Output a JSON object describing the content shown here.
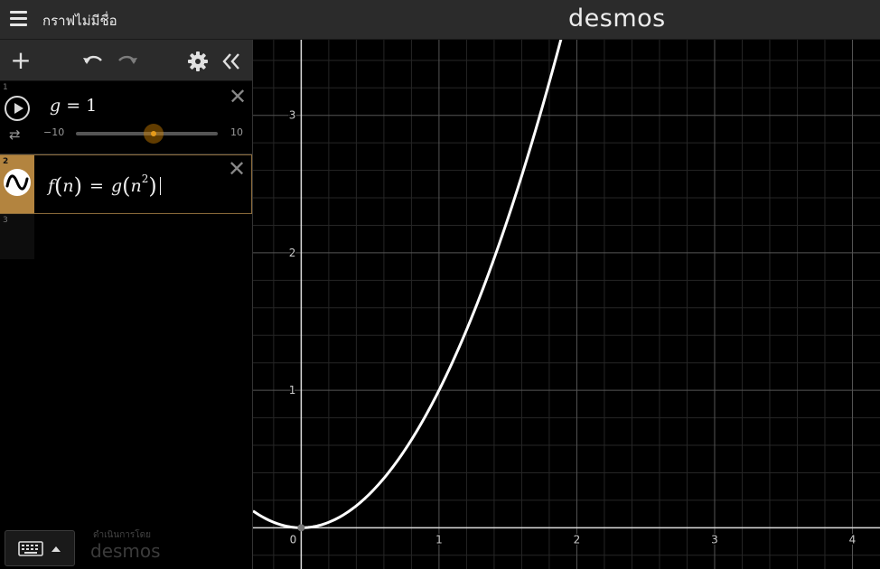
{
  "header": {
    "title": "กราฟไม่มีชื่อ",
    "brand": "desmos"
  },
  "toolbar": {
    "add_icon": "plus-icon",
    "undo_icon": "undo-icon",
    "redo_icon": "redo-icon",
    "settings_icon": "gear-icon",
    "collapse_icon": "double-chevron-left-icon"
  },
  "expressions": [
    {
      "index": "1",
      "latex_lhs": "g",
      "latex_eq": " = ",
      "latex_rhs": "1",
      "slider": {
        "min_label": "−10",
        "max_label": "10",
        "min": -10,
        "max": 10,
        "value": 1
      }
    },
    {
      "index": "2",
      "f": "f",
      "arg": "n",
      "eq": "=",
      "g": "g",
      "inner": "n",
      "exp": "2",
      "color": "#ffffff"
    },
    {
      "index": "3"
    }
  ],
  "footer": {
    "powered_by": "ดำเนินการโดย",
    "brand": "desmos"
  },
  "graph": {
    "x_ticks": [
      "0",
      "1",
      "2",
      "3",
      "4"
    ],
    "y_ticks": [
      "1",
      "2",
      "3"
    ],
    "xlim": [
      -0.35,
      4.2
    ],
    "ylim": [
      -0.3,
      3.55
    ],
    "curve_color": "#ffffff",
    "function": "x^2"
  }
}
